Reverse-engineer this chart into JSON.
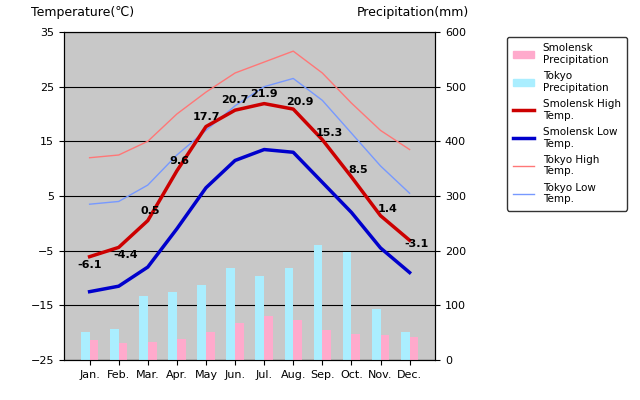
{
  "months": [
    "Jan.",
    "Feb.",
    "Mar.",
    "Apr.",
    "May",
    "Jun.",
    "Jul.",
    "Aug.",
    "Sep.",
    "Oct.",
    "Nov.",
    "Dec."
  ],
  "smolensk_high": [
    -6.1,
    -4.4,
    0.5,
    9.6,
    17.7,
    20.7,
    21.9,
    20.9,
    15.3,
    8.5,
    1.4,
    -3.1
  ],
  "smolensk_low": [
    -12.5,
    -11.5,
    -8.0,
    -1.0,
    6.5,
    11.5,
    13.5,
    13.0,
    7.5,
    2.0,
    -4.5,
    -9.0
  ],
  "tokyo_high": [
    12.0,
    12.5,
    15.0,
    20.0,
    24.0,
    27.5,
    29.5,
    31.5,
    27.5,
    22.0,
    17.0,
    13.5
  ],
  "tokyo_low": [
    3.5,
    4.0,
    7.0,
    12.5,
    17.0,
    21.5,
    25.0,
    26.5,
    22.5,
    16.5,
    10.5,
    5.5
  ],
  "smolensk_precip_mm": [
    37,
    32,
    33,
    39,
    51,
    68,
    81,
    73,
    55,
    47,
    45,
    42
  ],
  "tokyo_precip_mm": [
    52,
    56,
    117,
    125,
    138,
    168,
    154,
    168,
    210,
    198,
    93,
    51
  ],
  "temp_ylim": [
    -25,
    35
  ],
  "precip_ylim": [
    0,
    600
  ],
  "smolensk_high_color": "#cc0000",
  "smolensk_low_color": "#0000cc",
  "tokyo_high_color": "#ff7777",
  "tokyo_low_color": "#7799ff",
  "smolensk_precip_color": "#ffaacc",
  "tokyo_precip_color": "#aaeeff",
  "background_color": "#c8c8c8",
  "title_left": "Temperature(℃)",
  "title_right": "Precipitation(mm)",
  "label_smolensk_high": "Smolensk High\nTemp.",
  "label_smolensk_low": "Smolensk Low\nTemp.",
  "label_tokyo_high": "Tokyo High\nTemp.",
  "label_tokyo_low": "Tokyo Low\nTemp.",
  "label_smolensk_precip": "Smolensk\nPrecipitation",
  "label_tokyo_precip": "Tokyo\nPrecipitation",
  "temp_yticks": [
    -25,
    -15,
    -5,
    5,
    15,
    25,
    35
  ],
  "precip_yticks": [
    0,
    100,
    200,
    300,
    400,
    500,
    600
  ],
  "gridlines_temp": [
    -15,
    -5,
    5,
    15,
    25
  ],
  "bar_width": 0.3
}
